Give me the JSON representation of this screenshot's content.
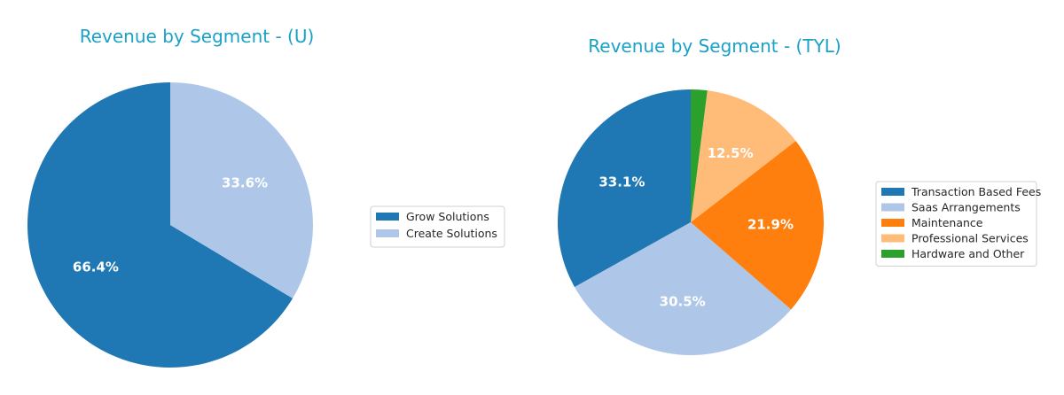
{
  "chart_data": [
    {
      "type": "pie",
      "title": "Revenue by Segment - (U)",
      "labels": [
        "Grow Solutions",
        "Create Solutions"
      ],
      "values": [
        66.4,
        33.6
      ],
      "colors": [
        "#1f77b4",
        "#aec7e8"
      ],
      "value_labels": [
        "66.4%",
        "33.6%"
      ],
      "start_angle_deg": 90,
      "direction": "counterclockwise",
      "legend_position": "right"
    },
    {
      "type": "pie",
      "title": "Revenue by Segment - (TYL)",
      "labels": [
        "Transaction Based Fees",
        "Saas Arrangements",
        "Maintenance",
        "Professional Services",
        "Hardware and Other"
      ],
      "values": [
        33.1,
        30.5,
        21.9,
        12.5,
        2.0
      ],
      "colors": [
        "#1f77b4",
        "#aec7e8",
        "#ff7f0e",
        "#ffbb78",
        "#2ca02c"
      ],
      "value_labels": [
        "33.1%",
        "30.5%",
        "21.9%",
        "12.5%",
        ""
      ],
      "start_angle_deg": 90,
      "direction": "counterclockwise",
      "legend_position": "right"
    }
  ],
  "title_color": "#1ba1c8"
}
